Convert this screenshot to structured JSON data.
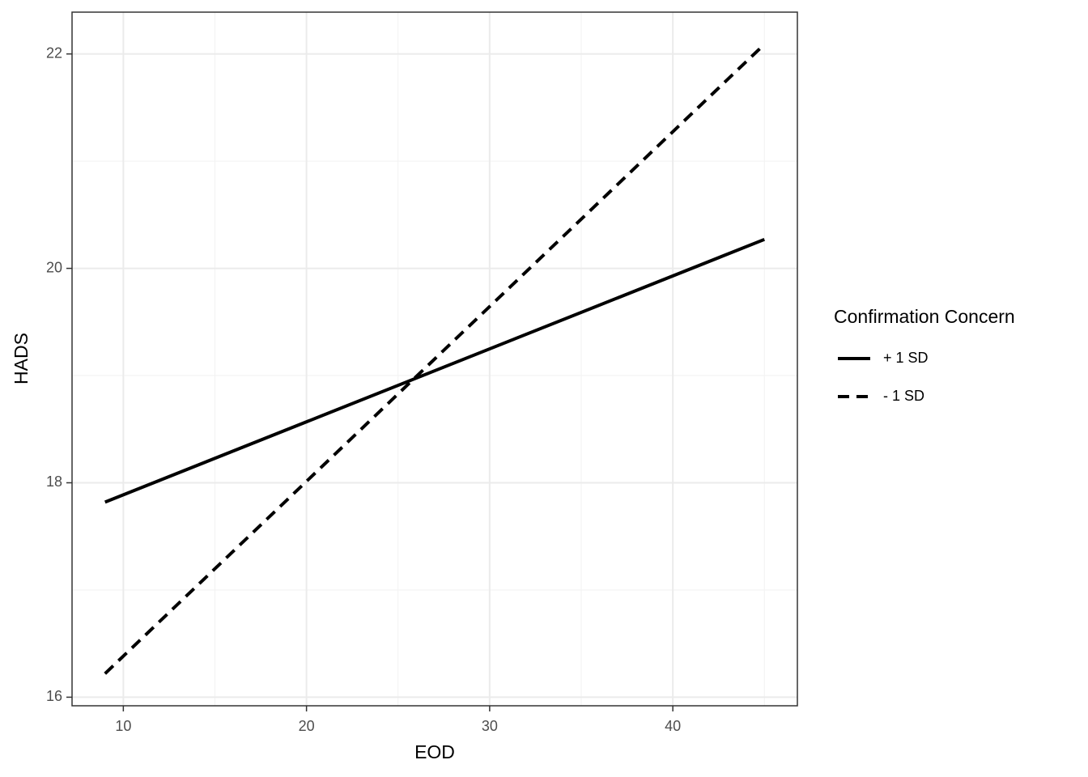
{
  "chart_data": {
    "type": "line",
    "x_label": "EOD",
    "y_label": "HADS",
    "x": [
      9,
      45
    ],
    "series": [
      {
        "name": "+ 1 SD",
        "color": "#000000",
        "dash": "solid",
        "values": [
          17.82,
          20.27
        ]
      },
      {
        "name": "- 1 SD",
        "color": "#000000",
        "dash": "dashed",
        "values": [
          16.22,
          22.09
        ]
      }
    ],
    "xlim": [
      7.2,
      46.8
    ],
    "ylim": [
      15.92,
      22.39
    ],
    "xticks": [
      10,
      20,
      30,
      40
    ],
    "yticks": [
      16,
      18,
      20,
      22
    ],
    "xminorticks": [
      15,
      25,
      35,
      45
    ],
    "yminorticks": [
      17,
      19,
      21
    ],
    "grid": true,
    "legend_title": "Confirmation Concern",
    "legend_position": "right"
  }
}
